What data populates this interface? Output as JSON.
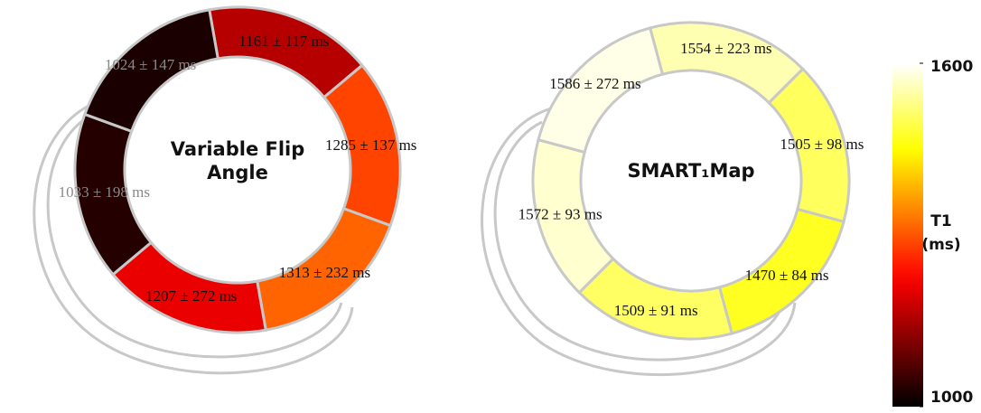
{
  "chart_data": {
    "type": "segment-ring",
    "colormap": "hot",
    "clim": [
      1000,
      1600
    ],
    "cticks": [
      1000,
      1600
    ],
    "colorbar_label": [
      "T1",
      "(ms)"
    ],
    "panels": [
      {
        "title_lines": [
          "Variable Flip",
          "Angle"
        ],
        "values": [
          1161,
          1285,
          1313,
          1207,
          1033,
          1024
        ],
        "errors": [
          117,
          137,
          232,
          272,
          198,
          147
        ],
        "value_labels": [
          "1161 ± 117 ms",
          "1285 ± 137 ms",
          "1313 ± 232 ms",
          "1207 ± 272 ms",
          "1033 ± 198 ms",
          "1024 ± 147 ms"
        ]
      },
      {
        "title_lines": [
          "SMART₁Map"
        ],
        "values": [
          1554,
          1505,
          1470,
          1509,
          1572,
          1586
        ],
        "errors": [
          223,
          98,
          84,
          91,
          93,
          272
        ],
        "value_labels": [
          "1554 ± 223 ms",
          "1505 ± 98 ms",
          "1470 ± 84 ms",
          "1509 ± 91 ms",
          "1572 ± 93 ms",
          "1586 ± 272 ms"
        ]
      }
    ]
  }
}
